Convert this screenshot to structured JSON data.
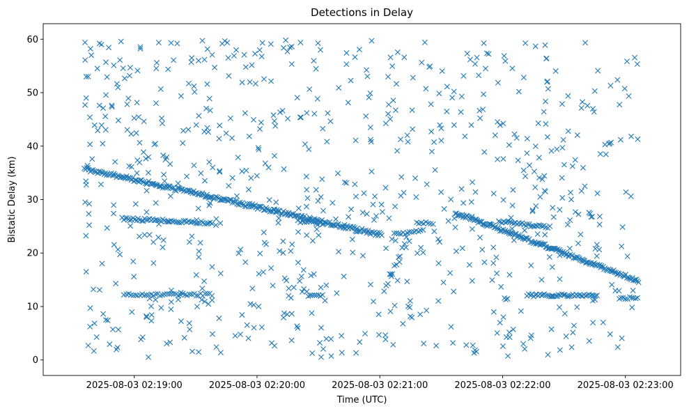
{
  "chart_data": {
    "type": "scatter",
    "title": "Detections in Delay",
    "xlabel": "Time (UTC)",
    "ylabel": "Bistatic Delay (km)",
    "x_unit": "seconds after 2025-08-03 02:18:00 UTC",
    "xlim": [
      15.5,
      327
    ],
    "ylim": [
      -2.9,
      62.9
    ],
    "marker": "x",
    "color": "#1f77b4",
    "x_ticks": [
      {
        "value": 60,
        "label": "2025-08-03 02:19:00"
      },
      {
        "value": 120,
        "label": "2025-08-03 02:20:00"
      },
      {
        "value": 180,
        "label": "2025-08-03 02:21:00"
      },
      {
        "value": 240,
        "label": "2025-08-03 02:22:00"
      },
      {
        "value": 300,
        "label": "2025-08-03 02:23:00"
      }
    ],
    "y_ticks": [
      {
        "value": 0,
        "label": "0"
      },
      {
        "value": 10,
        "label": "10"
      },
      {
        "value": 20,
        "label": "20"
      },
      {
        "value": 30,
        "label": "30"
      },
      {
        "value": 40,
        "label": "40"
      },
      {
        "value": 50,
        "label": "50"
      },
      {
        "value": 60,
        "label": "60"
      }
    ],
    "time_range": [
      35.5,
      306.5
    ],
    "tracks": [
      {
        "t0": 35.5,
        "t1": 181,
        "y0": 35.8,
        "y1": 23.4,
        "count": 240,
        "noise": 0.35
      },
      {
        "t0": 217,
        "t1": 306.5,
        "y0": 27.5,
        "y1": 14.8,
        "count": 170,
        "noise": 0.3
      },
      {
        "t0": 54,
        "t1": 77,
        "y0": 26.4,
        "y1": 26.0,
        "count": 30,
        "noise": 0.25
      },
      {
        "t0": 77,
        "t1": 98,
        "y0": 26.0,
        "y1": 25.6,
        "count": 25,
        "noise": 0.25
      },
      {
        "t0": 140,
        "t1": 152,
        "y0": 26.0,
        "y1": 25.5,
        "count": 12,
        "noise": 0.25
      },
      {
        "t0": 198,
        "t1": 206,
        "y0": 25.8,
        "y1": 25.6,
        "count": 8,
        "noise": 0.25
      },
      {
        "t0": 238,
        "t1": 262,
        "y0": 26.0,
        "y1": 24.8,
        "count": 30,
        "noise": 0.25
      },
      {
        "t0": 55,
        "t1": 98,
        "y0": 12.2,
        "y1": 12.2,
        "count": 40,
        "noise": 0.25
      },
      {
        "t0": 145,
        "t1": 152,
        "y0": 12.0,
        "y1": 12.0,
        "count": 8,
        "noise": 0.2
      },
      {
        "t0": 252,
        "t1": 286,
        "y0": 12.1,
        "y1": 12.1,
        "count": 45,
        "noise": 0.25
      },
      {
        "t0": 297,
        "t1": 306,
        "y0": 11.6,
        "y1": 11.6,
        "count": 10,
        "noise": 0.25
      },
      {
        "t0": 187,
        "t1": 201,
        "y0": 23.5,
        "y1": 24.2,
        "count": 14,
        "noise": 0.25
      },
      {
        "t0": 182,
        "t1": 193,
        "y0": 13.0,
        "y1": 22.5,
        "count": 12,
        "noise": 0.6
      }
    ],
    "clutter": {
      "count": 720,
      "y_range": [
        0.5,
        59.8
      ],
      "seed": 20250803
    },
    "points": [
      [
        36,
        56.1
      ],
      [
        36.5,
        53.0
      ],
      [
        37.5,
        53.0
      ],
      [
        39,
        57.0
      ],
      [
        43,
        59.2
      ],
      [
        44,
        59.0
      ],
      [
        36.5,
        49.0
      ],
      [
        43,
        47.6
      ],
      [
        49,
        47.6
      ],
      [
        50,
        55.1
      ],
      [
        53,
        56.1
      ],
      [
        36,
        29.5
      ],
      [
        38,
        29.2
      ],
      [
        36.5,
        16.5
      ],
      [
        38.5,
        9.7
      ],
      [
        37.5,
        2.7
      ],
      [
        63,
        58.2
      ],
      [
        71,
        55.6
      ],
      [
        78,
        59.3
      ],
      [
        81,
        59.2
      ],
      [
        134,
        59.8
      ],
      [
        151,
        58.0
      ],
      [
        176,
        59.7
      ],
      [
        202,
        59.4
      ]
    ]
  }
}
